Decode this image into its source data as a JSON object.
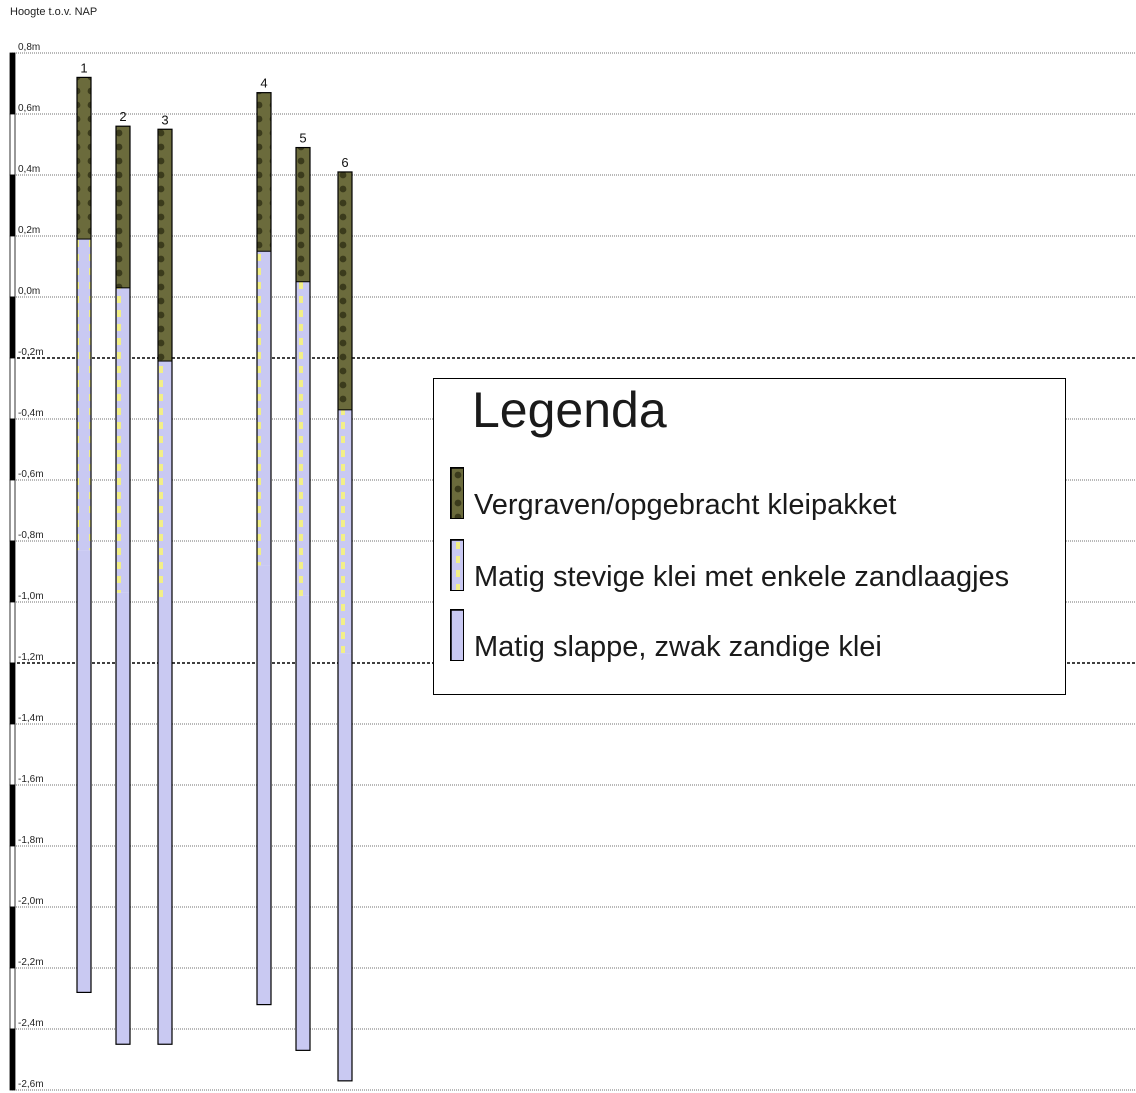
{
  "title": "Hoogte t.o.v. NAP",
  "colors": {
    "fill": "#6b6b3c",
    "fill_dot": "#3b3b1c",
    "stiff": "#c9c9f2",
    "sand_dash": "#f2ef88",
    "soft": "#c9c9f2",
    "grid": "#444444",
    "scale_bar": "#000000"
  },
  "chart_data": {
    "type": "diagram",
    "axis": {
      "label": "Hoogte t.o.v. NAP",
      "unit": "m",
      "ylim": [
        -2.6,
        0.8
      ],
      "ticks": [
        {
          "value": 0.8,
          "label": "0,8m"
        },
        {
          "value": 0.6,
          "label": "0,6m"
        },
        {
          "value": 0.4,
          "label": "0,4m"
        },
        {
          "value": 0.2,
          "label": "0,2m"
        },
        {
          "value": 0.0,
          "label": "0,0m"
        },
        {
          "value": -0.2,
          "label": "-0,2m"
        },
        {
          "value": -0.4,
          "label": "-0,4m"
        },
        {
          "value": -0.6,
          "label": "-0,6m"
        },
        {
          "value": -0.8,
          "label": "-0,8m"
        },
        {
          "value": -1.0,
          "label": "-1,0m"
        },
        {
          "value": -1.2,
          "label": "-1,2m"
        },
        {
          "value": -1.4,
          "label": "-1,4m"
        },
        {
          "value": -1.6,
          "label": "-1,6m"
        },
        {
          "value": -1.8,
          "label": "-1,8m"
        },
        {
          "value": -2.0,
          "label": "-2,0m"
        },
        {
          "value": -2.2,
          "label": "-2,2m"
        },
        {
          "value": -2.4,
          "label": "-2,4m"
        },
        {
          "value": -2.6,
          "label": "-2,6m"
        }
      ],
      "emphasized_lines": [
        -0.2,
        -1.2
      ]
    },
    "borings": [
      {
        "label": "1",
        "top": 0.72,
        "fill_bottom": 0.19,
        "stiff_bottom": -0.83,
        "bottom": -2.28
      },
      {
        "label": "2",
        "top": 0.56,
        "fill_bottom": 0.03,
        "stiff_bottom": -0.97,
        "bottom": -2.45
      },
      {
        "label": "3",
        "top": 0.55,
        "fill_bottom": -0.21,
        "stiff_bottom": -1.0,
        "bottom": -2.45
      },
      {
        "label": "4",
        "top": 0.67,
        "fill_bottom": 0.15,
        "stiff_bottom": -0.88,
        "bottom": -2.32
      },
      {
        "label": "5",
        "top": 0.49,
        "fill_bottom": 0.05,
        "stiff_bottom": -0.98,
        "bottom": -2.47
      },
      {
        "label": "6",
        "top": 0.41,
        "fill_bottom": -0.37,
        "stiff_bottom": -1.17,
        "bottom": -2.57
      }
    ]
  },
  "legend": {
    "title": "Legenda",
    "items": [
      {
        "label": "Vergraven/opgebracht kleipakket",
        "kind": "fill"
      },
      {
        "label": "Matig stevige klei met enkele zandlaagjes",
        "kind": "stiff"
      },
      {
        "label": "Matig slappe, zwak zandige klei",
        "kind": "soft"
      }
    ]
  }
}
